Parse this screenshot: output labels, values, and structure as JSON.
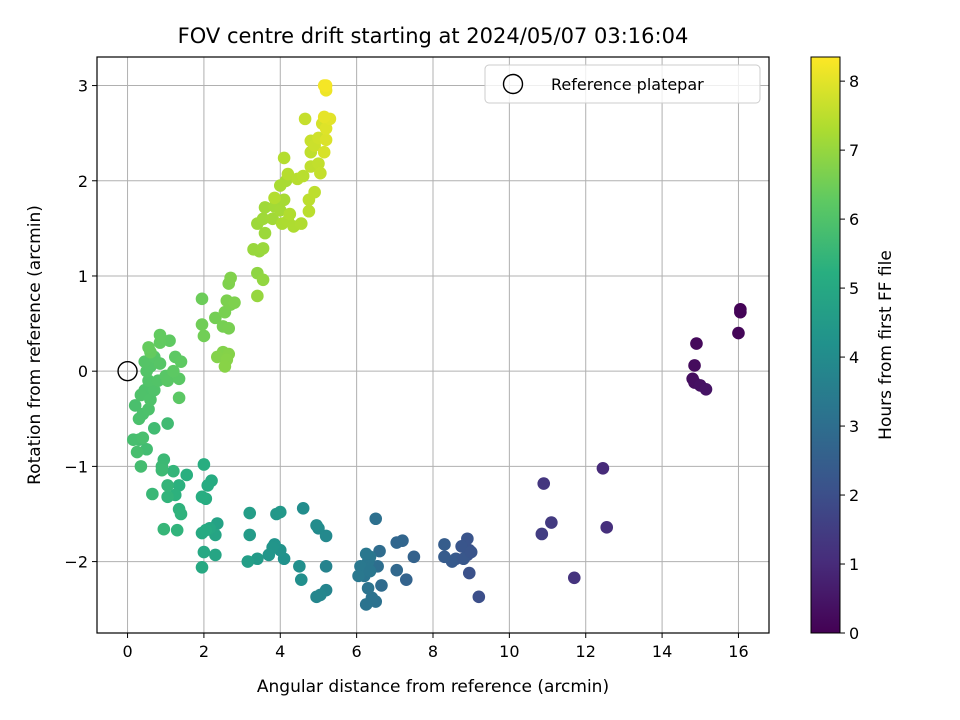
{
  "chart_data": {
    "type": "scatter",
    "title": "FOV centre drift starting at 2024/05/07 03:16:04",
    "xlabel": "Angular distance from reference (arcmin)",
    "ylabel": "Rotation from reference (arcmin)",
    "xlim": [
      -0.8,
      16.8
    ],
    "ylim": [
      -2.75,
      3.3
    ],
    "xticks": [
      0,
      2,
      4,
      6,
      8,
      10,
      12,
      14,
      16
    ],
    "yticks": [
      -2,
      -1,
      0,
      1,
      2,
      3
    ],
    "grid": true,
    "legend": {
      "position": "top-right",
      "entries": [
        "Reference platepar"
      ]
    },
    "reference_point": {
      "x": 0,
      "y": 0
    },
    "colorbar": {
      "label": "Hours from first FF file",
      "range": [
        0,
        8.35
      ],
      "ticks": [
        0,
        1,
        2,
        3,
        4,
        5,
        6,
        7,
        8
      ],
      "colormap": "viridis"
    },
    "series": [
      {
        "points": [
          {
            "x": 16.05,
            "y": 0.65,
            "c": 0.05
          },
          {
            "x": 16.05,
            "y": 0.62,
            "c": 0.08
          },
          {
            "x": 16.0,
            "y": 0.4,
            "c": 0.12
          },
          {
            "x": 14.9,
            "y": 0.29,
            "c": 0.2
          },
          {
            "x": 14.85,
            "y": 0.06,
            "c": 0.25
          },
          {
            "x": 14.8,
            "y": -0.08,
            "c": 0.3
          },
          {
            "x": 14.85,
            "y": -0.12,
            "c": 0.33
          },
          {
            "x": 15.0,
            "y": -0.15,
            "c": 0.38
          },
          {
            "x": 15.15,
            "y": -0.19,
            "c": 0.42
          },
          {
            "x": 12.45,
            "y": -1.02,
            "c": 1.0
          },
          {
            "x": 12.55,
            "y": -1.64,
            "c": 1.1
          },
          {
            "x": 10.9,
            "y": -1.18,
            "c": 1.3
          },
          {
            "x": 11.1,
            "y": -1.59,
            "c": 1.4
          },
          {
            "x": 10.85,
            "y": -1.71,
            "c": 1.5
          },
          {
            "x": 11.7,
            "y": -2.17,
            "c": 1.25
          },
          {
            "x": 9.2,
            "y": -2.37,
            "c": 2.0
          },
          {
            "x": 8.95,
            "y": -2.12,
            "c": 2.05
          },
          {
            "x": 8.9,
            "y": -1.93,
            "c": 2.1
          },
          {
            "x": 8.95,
            "y": -1.88,
            "c": 2.12
          },
          {
            "x": 8.9,
            "y": -1.76,
            "c": 2.15
          },
          {
            "x": 8.75,
            "y": -1.84,
            "c": 2.2
          },
          {
            "x": 8.6,
            "y": -1.97,
            "c": 2.3
          },
          {
            "x": 8.5,
            "y": -2.0,
            "c": 2.35
          },
          {
            "x": 8.3,
            "y": -1.95,
            "c": 2.4
          },
          {
            "x": 8.3,
            "y": -1.82,
            "c": 2.45
          },
          {
            "x": 8.8,
            "y": -1.97,
            "c": 2.25
          },
          {
            "x": 9.0,
            "y": -1.9,
            "c": 2.18
          },
          {
            "x": 7.5,
            "y": -1.95,
            "c": 2.6
          },
          {
            "x": 7.3,
            "y": -2.19,
            "c": 2.65
          },
          {
            "x": 7.2,
            "y": -1.78,
            "c": 2.7
          },
          {
            "x": 7.05,
            "y": -1.8,
            "c": 2.75
          },
          {
            "x": 7.05,
            "y": -2.09,
            "c": 2.8
          },
          {
            "x": 6.65,
            "y": -2.25,
            "c": 2.9
          },
          {
            "x": 6.6,
            "y": -1.89,
            "c": 2.95
          },
          {
            "x": 6.55,
            "y": -2.05,
            "c": 3.0
          },
          {
            "x": 6.5,
            "y": -1.55,
            "c": 3.05
          },
          {
            "x": 6.5,
            "y": -2.42,
            "c": 3.1
          },
          {
            "x": 6.4,
            "y": -2.38,
            "c": 3.12
          },
          {
            "x": 6.3,
            "y": -2.28,
            "c": 3.15
          },
          {
            "x": 6.25,
            "y": -2.45,
            "c": 3.18
          },
          {
            "x": 6.2,
            "y": -2.15,
            "c": 3.2
          },
          {
            "x": 6.2,
            "y": -2.05,
            "c": 3.22
          },
          {
            "x": 6.3,
            "y": -2.0,
            "c": 3.25
          },
          {
            "x": 6.35,
            "y": -1.95,
            "c": 3.27
          },
          {
            "x": 6.25,
            "y": -1.92,
            "c": 3.3
          },
          {
            "x": 6.1,
            "y": -2.05,
            "c": 3.32
          },
          {
            "x": 6.05,
            "y": -2.15,
            "c": 3.35
          },
          {
            "x": 6.35,
            "y": -2.1,
            "c": 3.28
          },
          {
            "x": 5.2,
            "y": -2.05,
            "c": 3.7
          },
          {
            "x": 5.2,
            "y": -2.3,
            "c": 3.75
          },
          {
            "x": 5.05,
            "y": -2.35,
            "c": 3.8
          },
          {
            "x": 4.95,
            "y": -2.37,
            "c": 3.82
          },
          {
            "x": 5.2,
            "y": -1.73,
            "c": 3.9
          },
          {
            "x": 5.0,
            "y": -1.65,
            "c": 3.95
          },
          {
            "x": 4.95,
            "y": -1.62,
            "c": 4.0
          },
          {
            "x": 4.6,
            "y": -1.44,
            "c": 4.05
          },
          {
            "x": 4.55,
            "y": -2.19,
            "c": 4.1
          },
          {
            "x": 4.5,
            "y": -2.05,
            "c": 4.12
          },
          {
            "x": 4.1,
            "y": -1.97,
            "c": 4.2
          },
          {
            "x": 4.0,
            "y": -1.88,
            "c": 4.25
          },
          {
            "x": 3.85,
            "y": -1.82,
            "c": 4.3
          },
          {
            "x": 3.8,
            "y": -1.85,
            "c": 4.32
          },
          {
            "x": 3.7,
            "y": -1.93,
            "c": 4.35
          },
          {
            "x": 3.9,
            "y": -1.5,
            "c": 4.4
          },
          {
            "x": 4.0,
            "y": -1.48,
            "c": 4.42
          },
          {
            "x": 3.4,
            "y": -1.97,
            "c": 4.5
          },
          {
            "x": 3.2,
            "y": -1.72,
            "c": 4.55
          },
          {
            "x": 3.2,
            "y": -1.49,
            "c": 4.6
          },
          {
            "x": 3.15,
            "y": -2.0,
            "c": 4.65
          },
          {
            "x": 2.35,
            "y": -1.6,
            "c": 4.8
          },
          {
            "x": 2.3,
            "y": -1.72,
            "c": 4.85
          },
          {
            "x": 2.3,
            "y": -1.93,
            "c": 4.9
          },
          {
            "x": 2.15,
            "y": -1.65,
            "c": 4.95
          },
          {
            "x": 2.0,
            "y": -1.9,
            "c": 5.0
          },
          {
            "x": 1.95,
            "y": -2.06,
            "c": 5.02
          },
          {
            "x": 1.95,
            "y": -1.7,
            "c": 5.05
          },
          {
            "x": 2.05,
            "y": -1.67,
            "c": 5.07
          },
          {
            "x": 2.2,
            "y": -1.15,
            "c": 5.1
          },
          {
            "x": 2.1,
            "y": -1.2,
            "c": 5.12
          },
          {
            "x": 2.05,
            "y": -1.34,
            "c": 5.15
          },
          {
            "x": 1.95,
            "y": -1.32,
            "c": 5.17
          },
          {
            "x": 2.0,
            "y": -0.98,
            "c": 5.2
          },
          {
            "x": 1.55,
            "y": -1.09,
            "c": 5.25
          },
          {
            "x": 1.35,
            "y": -1.2,
            "c": 5.3
          },
          {
            "x": 1.25,
            "y": -1.3,
            "c": 5.32
          },
          {
            "x": 1.35,
            "y": -1.45,
            "c": 5.35
          },
          {
            "x": 1.4,
            "y": -1.5,
            "c": 5.37
          },
          {
            "x": 1.3,
            "y": -1.67,
            "c": 5.4
          },
          {
            "x": 1.05,
            "y": -1.32,
            "c": 5.42
          },
          {
            "x": 1.2,
            "y": -1.05,
            "c": 5.45
          },
          {
            "x": 1.05,
            "y": -1.2,
            "c": 5.47
          },
          {
            "x": 0.95,
            "y": -1.66,
            "c": 5.5
          },
          {
            "x": 0.65,
            "y": -1.29,
            "c": 5.55
          },
          {
            "x": 0.95,
            "y": -0.93,
            "c": 5.6
          },
          {
            "x": 0.9,
            "y": -1.0,
            "c": 5.62
          },
          {
            "x": 0.9,
            "y": -1.04,
            "c": 5.65
          },
          {
            "x": 1.05,
            "y": -0.55,
            "c": 5.7
          },
          {
            "x": 0.7,
            "y": -0.6,
            "c": 5.72
          },
          {
            "x": 0.5,
            "y": -0.82,
            "c": 5.75
          },
          {
            "x": 0.35,
            "y": -1.0,
            "c": 5.77
          },
          {
            "x": 0.3,
            "y": -0.72,
            "c": 5.8
          },
          {
            "x": 0.15,
            "y": -0.72,
            "c": 5.82
          },
          {
            "x": 0.25,
            "y": -0.85,
            "c": 5.84
          },
          {
            "x": 0.4,
            "y": -0.7,
            "c": 5.86
          },
          {
            "x": 0.2,
            "y": -0.36,
            "c": 5.88
          },
          {
            "x": 0.3,
            "y": -0.5,
            "c": 5.9
          },
          {
            "x": 0.4,
            "y": -0.45,
            "c": 5.92
          },
          {
            "x": 0.55,
            "y": -0.4,
            "c": 5.94
          },
          {
            "x": 0.45,
            "y": -0.2,
            "c": 5.96
          },
          {
            "x": 0.35,
            "y": -0.25,
            "c": 5.97
          },
          {
            "x": 0.6,
            "y": -0.3,
            "c": 5.98
          },
          {
            "x": 0.7,
            "y": -0.2,
            "c": 6.0
          },
          {
            "x": 0.55,
            "y": -0.1,
            "c": 6.02
          },
          {
            "x": 0.8,
            "y": -0.1,
            "c": 6.04
          },
          {
            "x": 0.5,
            "y": 0.0,
            "c": 6.05
          },
          {
            "x": 0.6,
            "y": 0.05,
            "c": 6.06
          },
          {
            "x": 0.45,
            "y": 0.1,
            "c": 6.08
          },
          {
            "x": 0.7,
            "y": 0.15,
            "c": 6.1
          },
          {
            "x": 0.85,
            "y": 0.08,
            "c": 6.12
          },
          {
            "x": 1.0,
            "y": -0.05,
            "c": 6.14
          },
          {
            "x": 1.05,
            "y": -0.1,
            "c": 6.16
          },
          {
            "x": 1.35,
            "y": -0.08,
            "c": 6.18
          },
          {
            "x": 1.35,
            "y": -0.28,
            "c": 6.2
          },
          {
            "x": 1.2,
            "y": 0.0,
            "c": 6.22
          },
          {
            "x": 1.25,
            "y": 0.15,
            "c": 6.24
          },
          {
            "x": 1.4,
            "y": 0.1,
            "c": 6.26
          },
          {
            "x": 1.1,
            "y": 0.32,
            "c": 6.28
          },
          {
            "x": 0.85,
            "y": 0.3,
            "c": 6.3
          },
          {
            "x": 0.85,
            "y": 0.38,
            "c": 6.32
          },
          {
            "x": 0.6,
            "y": 0.2,
            "c": 6.34
          },
          {
            "x": 0.55,
            "y": 0.25,
            "c": 6.35
          },
          {
            "x": 1.95,
            "y": 0.76,
            "c": 6.45
          },
          {
            "x": 1.95,
            "y": 0.49,
            "c": 6.5
          },
          {
            "x": 2.0,
            "y": 0.37,
            "c": 6.52
          },
          {
            "x": 2.3,
            "y": 0.56,
            "c": 6.55
          },
          {
            "x": 2.5,
            "y": 0.47,
            "c": 6.58
          },
          {
            "x": 2.65,
            "y": 0.45,
            "c": 6.6
          },
          {
            "x": 2.55,
            "y": 0.62,
            "c": 6.62
          },
          {
            "x": 2.7,
            "y": 0.7,
            "c": 6.64
          },
          {
            "x": 2.6,
            "y": 0.74,
            "c": 6.66
          },
          {
            "x": 2.8,
            "y": 0.72,
            "c": 6.68
          },
          {
            "x": 2.65,
            "y": 0.92,
            "c": 6.7
          },
          {
            "x": 2.7,
            "y": 0.98,
            "c": 6.72
          },
          {
            "x": 2.5,
            "y": 0.2,
            "c": 6.74
          },
          {
            "x": 2.35,
            "y": 0.15,
            "c": 6.76
          },
          {
            "x": 2.65,
            "y": 0.18,
            "c": 6.78
          },
          {
            "x": 2.6,
            "y": 0.12,
            "c": 6.8
          },
          {
            "x": 2.55,
            "y": 0.05,
            "c": 6.82
          },
          {
            "x": 3.4,
            "y": 1.03,
            "c": 6.9
          },
          {
            "x": 3.55,
            "y": 0.96,
            "c": 6.95
          },
          {
            "x": 3.4,
            "y": 0.79,
            "c": 7.0
          },
          {
            "x": 3.45,
            "y": 1.26,
            "c": 7.02
          },
          {
            "x": 3.3,
            "y": 1.28,
            "c": 7.04
          },
          {
            "x": 3.55,
            "y": 1.29,
            "c": 7.06
          },
          {
            "x": 3.6,
            "y": 1.45,
            "c": 7.08
          },
          {
            "x": 3.4,
            "y": 1.55,
            "c": 7.1
          },
          {
            "x": 3.55,
            "y": 1.6,
            "c": 7.12
          },
          {
            "x": 3.6,
            "y": 1.72,
            "c": 7.14
          },
          {
            "x": 3.8,
            "y": 1.6,
            "c": 7.16
          },
          {
            "x": 3.85,
            "y": 1.73,
            "c": 7.18
          },
          {
            "x": 4.0,
            "y": 1.69,
            "c": 7.2
          },
          {
            "x": 4.1,
            "y": 1.8,
            "c": 7.22
          },
          {
            "x": 4.0,
            "y": 1.95,
            "c": 7.24
          },
          {
            "x": 4.15,
            "y": 2.0,
            "c": 7.26
          },
          {
            "x": 4.05,
            "y": 1.55,
            "c": 7.28
          },
          {
            "x": 4.2,
            "y": 1.58,
            "c": 7.3
          },
          {
            "x": 4.35,
            "y": 1.52,
            "c": 7.32
          },
          {
            "x": 4.55,
            "y": 1.55,
            "c": 7.34
          },
          {
            "x": 4.25,
            "y": 1.65,
            "c": 7.36
          },
          {
            "x": 3.85,
            "y": 1.82,
            "c": 7.38
          },
          {
            "x": 4.1,
            "y": 2.24,
            "c": 7.4
          },
          {
            "x": 4.2,
            "y": 2.07,
            "c": 7.42
          },
          {
            "x": 4.45,
            "y": 2.02,
            "c": 7.44
          },
          {
            "x": 4.6,
            "y": 2.05,
            "c": 7.46
          },
          {
            "x": 4.75,
            "y": 1.68,
            "c": 7.48
          },
          {
            "x": 4.75,
            "y": 1.8,
            "c": 7.5
          },
          {
            "x": 4.9,
            "y": 1.88,
            "c": 7.52
          },
          {
            "x": 4.8,
            "y": 2.15,
            "c": 7.54
          },
          {
            "x": 4.8,
            "y": 2.3,
            "c": 7.56
          },
          {
            "x": 5.0,
            "y": 2.18,
            "c": 7.58
          },
          {
            "x": 5.05,
            "y": 2.08,
            "c": 7.6
          },
          {
            "x": 4.65,
            "y": 2.65,
            "c": 7.62
          },
          {
            "x": 4.8,
            "y": 2.42,
            "c": 7.65
          },
          {
            "x": 4.9,
            "y": 2.37,
            "c": 7.7
          },
          {
            "x": 5.0,
            "y": 2.45,
            "c": 7.75
          },
          {
            "x": 5.1,
            "y": 2.6,
            "c": 7.8
          },
          {
            "x": 5.15,
            "y": 2.3,
            "c": 7.85
          },
          {
            "x": 5.2,
            "y": 2.43,
            "c": 7.9
          },
          {
            "x": 5.2,
            "y": 2.55,
            "c": 7.95
          },
          {
            "x": 5.3,
            "y": 2.65,
            "c": 8.0
          },
          {
            "x": 5.15,
            "y": 2.67,
            "c": 8.05
          },
          {
            "x": 5.2,
            "y": 2.95,
            "c": 8.15
          },
          {
            "x": 5.15,
            "y": 3.0,
            "c": 8.2
          },
          {
            "x": 5.2,
            "y": 3.0,
            "c": 8.25
          }
        ]
      }
    ]
  }
}
